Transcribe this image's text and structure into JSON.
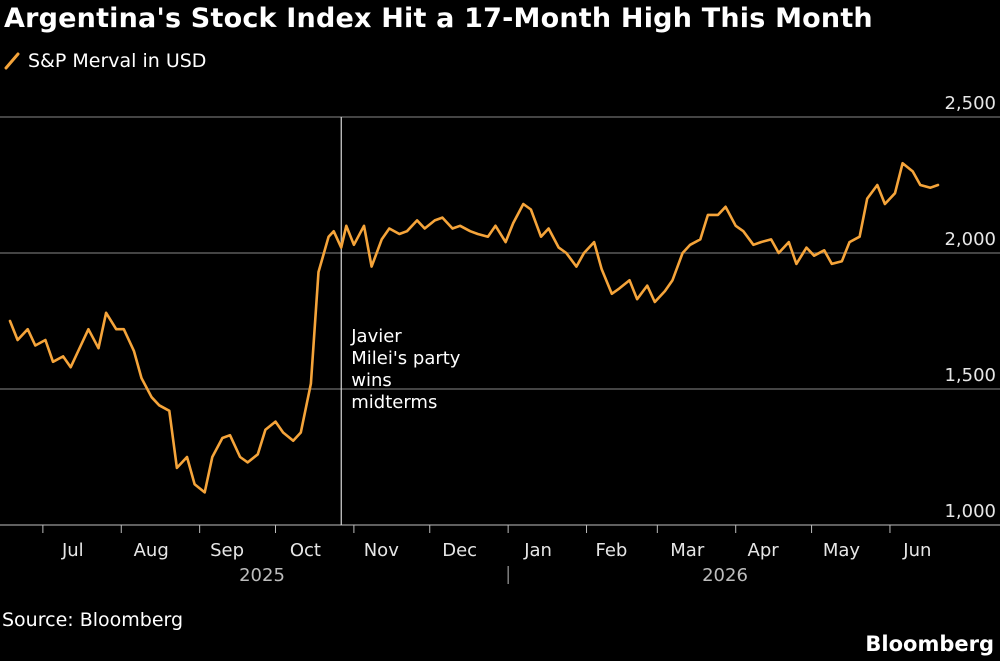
{
  "title": "Argentina's Stock Index Hit a 17-Month High This Month",
  "legend_label": "S&P Merval in USD",
  "source": "Source: Bloomberg",
  "brand": "Bloomberg",
  "colors": {
    "background": "#000000",
    "line": "#f5a43a",
    "grid": "#6e6e6e"
  },
  "chart_data": {
    "type": "line",
    "series": [
      {
        "name": "S&P Merval in USD",
        "x": [
          "2025-06-18",
          "2025-06-21",
          "2025-06-25",
          "2025-06-28",
          "2025-07-02",
          "2025-07-05",
          "2025-07-09",
          "2025-07-12",
          "2025-07-16",
          "2025-07-19",
          "2025-07-23",
          "2025-07-26",
          "2025-07-30",
          "2025-08-02",
          "2025-08-06",
          "2025-08-09",
          "2025-08-13",
          "2025-08-16",
          "2025-08-20",
          "2025-08-23",
          "2025-08-27",
          "2025-08-30",
          "2025-09-03",
          "2025-09-06",
          "2025-09-10",
          "2025-09-13",
          "2025-09-17",
          "2025-09-20",
          "2025-09-24",
          "2025-09-27",
          "2025-10-01",
          "2025-10-04",
          "2025-10-08",
          "2025-10-11",
          "2025-10-15",
          "2025-10-18",
          "2025-10-22",
          "2025-10-24",
          "2025-10-27",
          "2025-10-29",
          "2025-11-01",
          "2025-11-05",
          "2025-11-08",
          "2025-11-12",
          "2025-11-15",
          "2025-11-19",
          "2025-11-22",
          "2025-11-26",
          "2025-11-29",
          "2025-12-03",
          "2025-12-06",
          "2025-12-10",
          "2025-12-13",
          "2025-12-17",
          "2025-12-20",
          "2025-12-24",
          "2025-12-27",
          "2025-12-31",
          "2026-01-03",
          "2026-01-07",
          "2026-01-10",
          "2026-01-14",
          "2026-01-17",
          "2026-01-21",
          "2026-01-24",
          "2026-01-28",
          "2026-01-31",
          "2026-02-04",
          "2026-02-07",
          "2026-02-11",
          "2026-02-14",
          "2026-02-18",
          "2026-02-21",
          "2026-02-25",
          "2026-02-28",
          "2026-03-04",
          "2026-03-07",
          "2026-03-11",
          "2026-03-14",
          "2026-03-18",
          "2026-03-21",
          "2026-03-25",
          "2026-03-28",
          "2026-04-01",
          "2026-04-04",
          "2026-04-08",
          "2026-04-11",
          "2026-04-15",
          "2026-04-18",
          "2026-04-22",
          "2026-04-25",
          "2026-04-29",
          "2026-05-02",
          "2026-05-06",
          "2026-05-09",
          "2026-05-13",
          "2026-05-16",
          "2026-05-20",
          "2026-05-23",
          "2026-05-27",
          "2026-05-30",
          "2026-06-03",
          "2026-06-06",
          "2026-06-10",
          "2026-06-13",
          "2026-06-17",
          "2026-06-20"
        ],
        "values": [
          1750,
          1680,
          1720,
          1660,
          1680,
          1600,
          1620,
          1580,
          1660,
          1720,
          1650,
          1780,
          1720,
          1720,
          1640,
          1540,
          1470,
          1440,
          1420,
          1210,
          1250,
          1150,
          1120,
          1250,
          1320,
          1330,
          1250,
          1230,
          1260,
          1350,
          1380,
          1340,
          1310,
          1340,
          1520,
          1930,
          2060,
          2080,
          2020,
          2100,
          2030,
          2100,
          1950,
          2050,
          2090,
          2070,
          2080,
          2120,
          2090,
          2120,
          2130,
          2090,
          2100,
          2080,
          2070,
          2060,
          2100,
          2040,
          2110,
          2180,
          2160,
          2060,
          2090,
          2020,
          2000,
          1950,
          2000,
          2040,
          1940,
          1850,
          1870,
          1900,
          1830,
          1880,
          1820,
          1860,
          1900,
          2000,
          2030,
          2050,
          2140,
          2140,
          2170,
          2100,
          2080,
          2030,
          2040,
          2050,
          2000,
          2040,
          1960,
          2020,
          1990,
          2010,
          1960,
          1970,
          2040,
          2060,
          2200,
          2250,
          2180,
          2220,
          2330,
          2300,
          2250,
          2240,
          2250
        ],
        "values_note_removed": true
      }
    ],
    "ylim": [
      1000,
      2500
    ],
    "yticks": [
      1000,
      1500,
      2000,
      2500
    ],
    "ytick_labels": [
      "1,000",
      "1,500",
      "2,000",
      "2,500"
    ],
    "xtick_labels": [
      "Jul",
      "Aug",
      "Sep",
      "Oct",
      "Nov",
      "Dec",
      "Jan",
      "Feb",
      "Mar",
      "Apr",
      "May",
      "Jun"
    ],
    "year_labels": [
      "2025",
      "2026"
    ],
    "annotation": {
      "date": "2025-10-27",
      "lines": [
        "Javier",
        "Milei's party",
        "wins",
        "midterms"
      ]
    },
    "grid": true,
    "y_axis_position": "right",
    "legend_position": "top-left"
  }
}
